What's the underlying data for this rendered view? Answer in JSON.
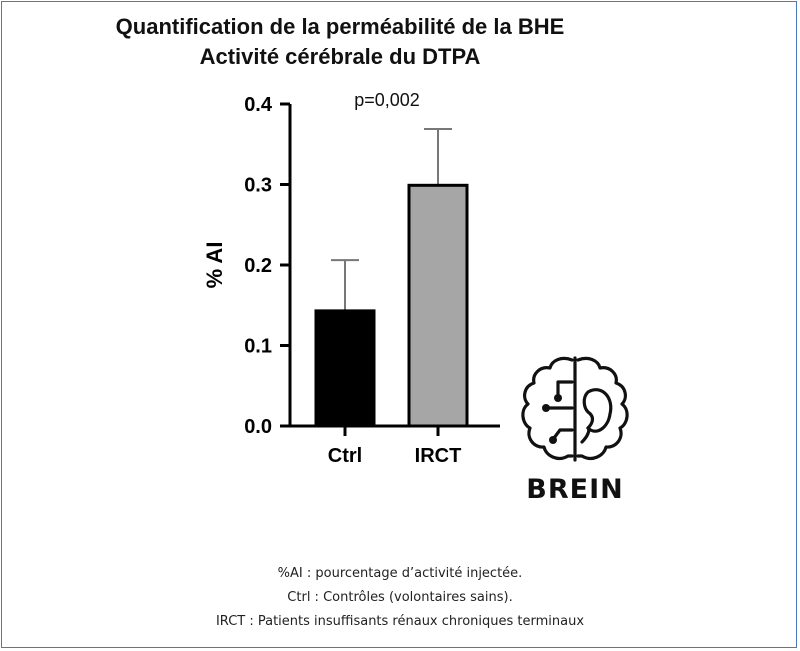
{
  "chart_data": {
    "type": "bar",
    "title": "Quantification de la perméabilité de la BHE",
    "subtitle": "Activité cérébrale du DTPA",
    "categories": [
      "Ctrl",
      "IRCT"
    ],
    "values": [
      0.143,
      0.299
    ],
    "error_upper": [
      0.206,
      0.369
    ],
    "bar_colors": [
      "#000000",
      "#a6a6a6"
    ],
    "ylabel": "% AI",
    "xlabel": "",
    "ylim": [
      0,
      0.4
    ],
    "yticks": [
      "0.0",
      "0.1",
      "0.2",
      "0.3",
      "0.4"
    ],
    "annotation": "p=0,002",
    "grid": false
  },
  "logo": {
    "text": "BREIN",
    "icon": "brain-kidney-icon"
  },
  "notes": [
    "%AI : pourcentage d’activité injectée.",
    "Ctrl : Contrôles (volontaires sains).",
    "IRCT : Patients insuffisants rénaux chroniques terminaux"
  ]
}
